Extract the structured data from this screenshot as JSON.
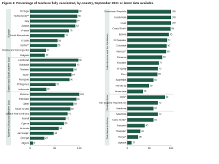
{
  "title": "Figure 1: Percentage of teachers fully vaccinated, by country, September 2021 or latest data available",
  "chart_data": [
    {
      "type": "bar",
      "orientation": "horizontal",
      "color": "#1d5b47",
      "xlim": [
        0,
        100
      ],
      "xticks": [
        0,
        50,
        100
      ],
      "groups": [
        {
          "name": "Europe",
          "categories": [
            "Portugal",
            "Netherlands**",
            "Italy",
            "Austria",
            "France",
            "North Macedonia",
            "Croatia",
            "Serbia**",
            "Bosnia and Herzegovina",
            "Bulgaria"
          ],
          "values": [
            98,
            96,
            94,
            92,
            79,
            70,
            56,
            55,
            32,
            30
          ]
        },
        {
          "name": "Eastern and South-eastern Asia",
          "categories": [
            "Cambodia",
            "Malaysia",
            "Thailand",
            "Japan",
            "Mongolia",
            "Philippines",
            "Indonesia"
          ],
          "values": [
            98,
            93,
            88,
            84,
            80,
            52,
            33
          ]
        },
        {
          "name": "Northern Africa and Western Asia",
          "categories": [
            "Morocco",
            "Palestine",
            "Qatar",
            "Saudi Arabia",
            "United Arab Emirates",
            "Kuwait",
            "Cyprus",
            "Armenia",
            "Azerbaijan",
            "Georgia",
            "Algeria"
          ],
          "values": [
            100,
            94,
            88,
            82,
            76,
            72,
            69,
            58,
            48,
            29,
            6
          ]
        }
      ]
    },
    {
      "type": "bar",
      "orientation": "horizontal",
      "color": "#1d5b47",
      "xlim": [
        0,
        100
      ],
      "xticks": [
        0,
        50,
        100
      ],
      "groups": [
        {
          "name": "Latin America and the Caribbean",
          "categories": [
            "Dominican Republic",
            "Guatemala",
            "Chile",
            "Costa Rica**",
            "Bolivia",
            "El Salvador",
            "Colombia",
            "Mexico**",
            "Panama",
            "Ecuador",
            "Uruguay",
            "Peru",
            "Argentina",
            "Honduras",
            "Venezuela"
          ],
          "values": [
            100,
            100,
            100,
            99,
            95,
            91,
            90,
            89,
            80,
            72,
            70,
            69,
            60,
            50,
            36
          ]
        },
        {
          "name": "Southern Asia",
          "categories": [
            "India*",
            "Iran (Islamic Republic of)",
            "Maldives"
          ],
          "values": [
            86,
            70,
            60
          ]
        },
        {
          "name": "Sub-Saharan Africa",
          "categories": [
            "Mauritius",
            "Cabo Verde*",
            "Eswatini",
            "Rwanda*",
            "Kenya*",
            "Uganda"
          ],
          "values": [
            70,
            60,
            40,
            30,
            25,
            10
          ]
        }
      ]
    }
  ]
}
